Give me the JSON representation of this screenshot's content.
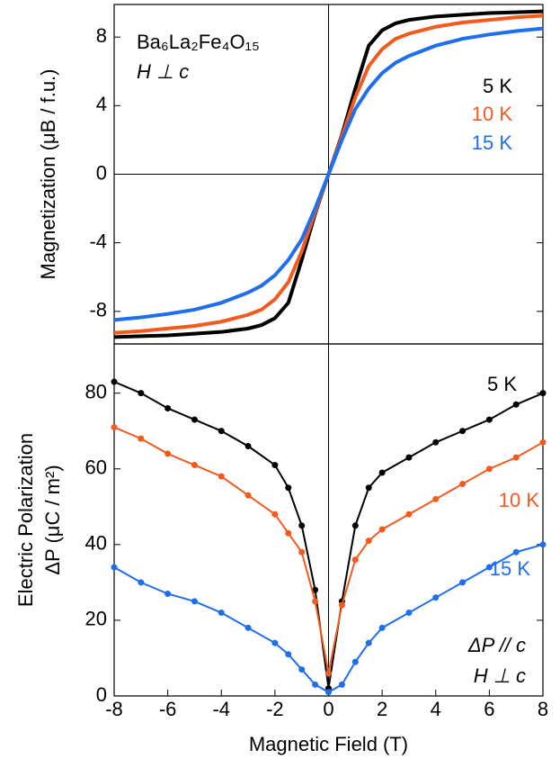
{
  "chart_data": [
    {
      "type": "line",
      "ylabel": "Magnetization (μB / f.u.)",
      "annotations": [
        "Ba₆La₂Fe₄O₁₅",
        "H ⊥ c"
      ],
      "x": [
        -8,
        -7,
        -6,
        -5,
        -4,
        -3,
        -2.5,
        -2,
        -1.5,
        -1,
        -0.5,
        0,
        0.5,
        1,
        1.5,
        2,
        2.5,
        3,
        4,
        5,
        6,
        7,
        8
      ],
      "series": [
        {
          "name": "5 K",
          "color": "#000000",
          "values": [
            -9.5,
            -9.45,
            -9.4,
            -9.3,
            -9.2,
            -9.0,
            -8.8,
            -8.4,
            -7.5,
            -5.0,
            -2.3,
            0,
            2.3,
            5.0,
            7.5,
            8.4,
            8.8,
            9.0,
            9.2,
            9.3,
            9.4,
            9.45,
            9.5
          ]
        },
        {
          "name": "10 K",
          "color": "#f25a1e",
          "values": [
            -9.25,
            -9.15,
            -9.0,
            -8.85,
            -8.6,
            -8.2,
            -7.9,
            -7.3,
            -6.3,
            -4.5,
            -2.2,
            0,
            2.2,
            4.5,
            6.3,
            7.3,
            7.9,
            8.2,
            8.6,
            8.85,
            9.0,
            9.15,
            9.25
          ]
        },
        {
          "name": "15 K",
          "color": "#1f6ef0",
          "values": [
            -8.5,
            -8.35,
            -8.15,
            -7.9,
            -7.5,
            -6.9,
            -6.5,
            -5.9,
            -5.0,
            -3.8,
            -2.0,
            0,
            2.0,
            3.8,
            5.0,
            5.9,
            6.5,
            6.9,
            7.5,
            7.9,
            8.15,
            8.35,
            8.5
          ]
        }
      ],
      "xlim": [
        -8,
        8
      ],
      "ylim": [
        -9.9,
        9.9
      ],
      "yticks": [
        -8,
        -4,
        0,
        4,
        8
      ]
    },
    {
      "type": "scatter",
      "xlabel": "Magnetic Field (T)",
      "ylabel": [
        "Electric Polarization",
        "ΔP (μC / m²)"
      ],
      "annotations": [
        "ΔP // c",
        "H ⊥ c"
      ],
      "x": [
        -8,
        -7,
        -6,
        -5,
        -4,
        -3,
        -2,
        -1.5,
        -1,
        -0.5,
        0,
        0.5,
        1,
        1.5,
        2,
        3,
        4,
        5,
        6,
        7,
        8
      ],
      "series": [
        {
          "name": "5 K",
          "color": "#000000",
          "values": [
            83,
            80,
            76,
            73,
            70,
            66,
            61,
            55,
            45,
            28,
            2,
            25,
            45,
            55,
            59,
            63,
            67,
            70,
            73,
            77,
            80
          ]
        },
        {
          "name": "10 K",
          "color": "#f25a1e",
          "values": [
            71,
            68,
            64,
            61,
            58,
            53,
            48,
            43,
            38,
            25,
            6,
            24,
            36,
            41,
            44,
            48,
            52,
            56,
            60,
            63,
            67
          ]
        },
        {
          "name": "15 K",
          "color": "#1f6ef0",
          "values": [
            34,
            30,
            27,
            25,
            22,
            18,
            14,
            11,
            7,
            3,
            1,
            3,
            9,
            14,
            18,
            22,
            26,
            30,
            34,
            38,
            40
          ]
        }
      ],
      "xlim": [
        -8,
        8
      ],
      "ylim": [
        0,
        93
      ],
      "xticks": [
        -8,
        -6,
        -4,
        -2,
        0,
        2,
        4,
        6,
        8
      ],
      "yticks": [
        0,
        20,
        40,
        60,
        80
      ]
    }
  ]
}
